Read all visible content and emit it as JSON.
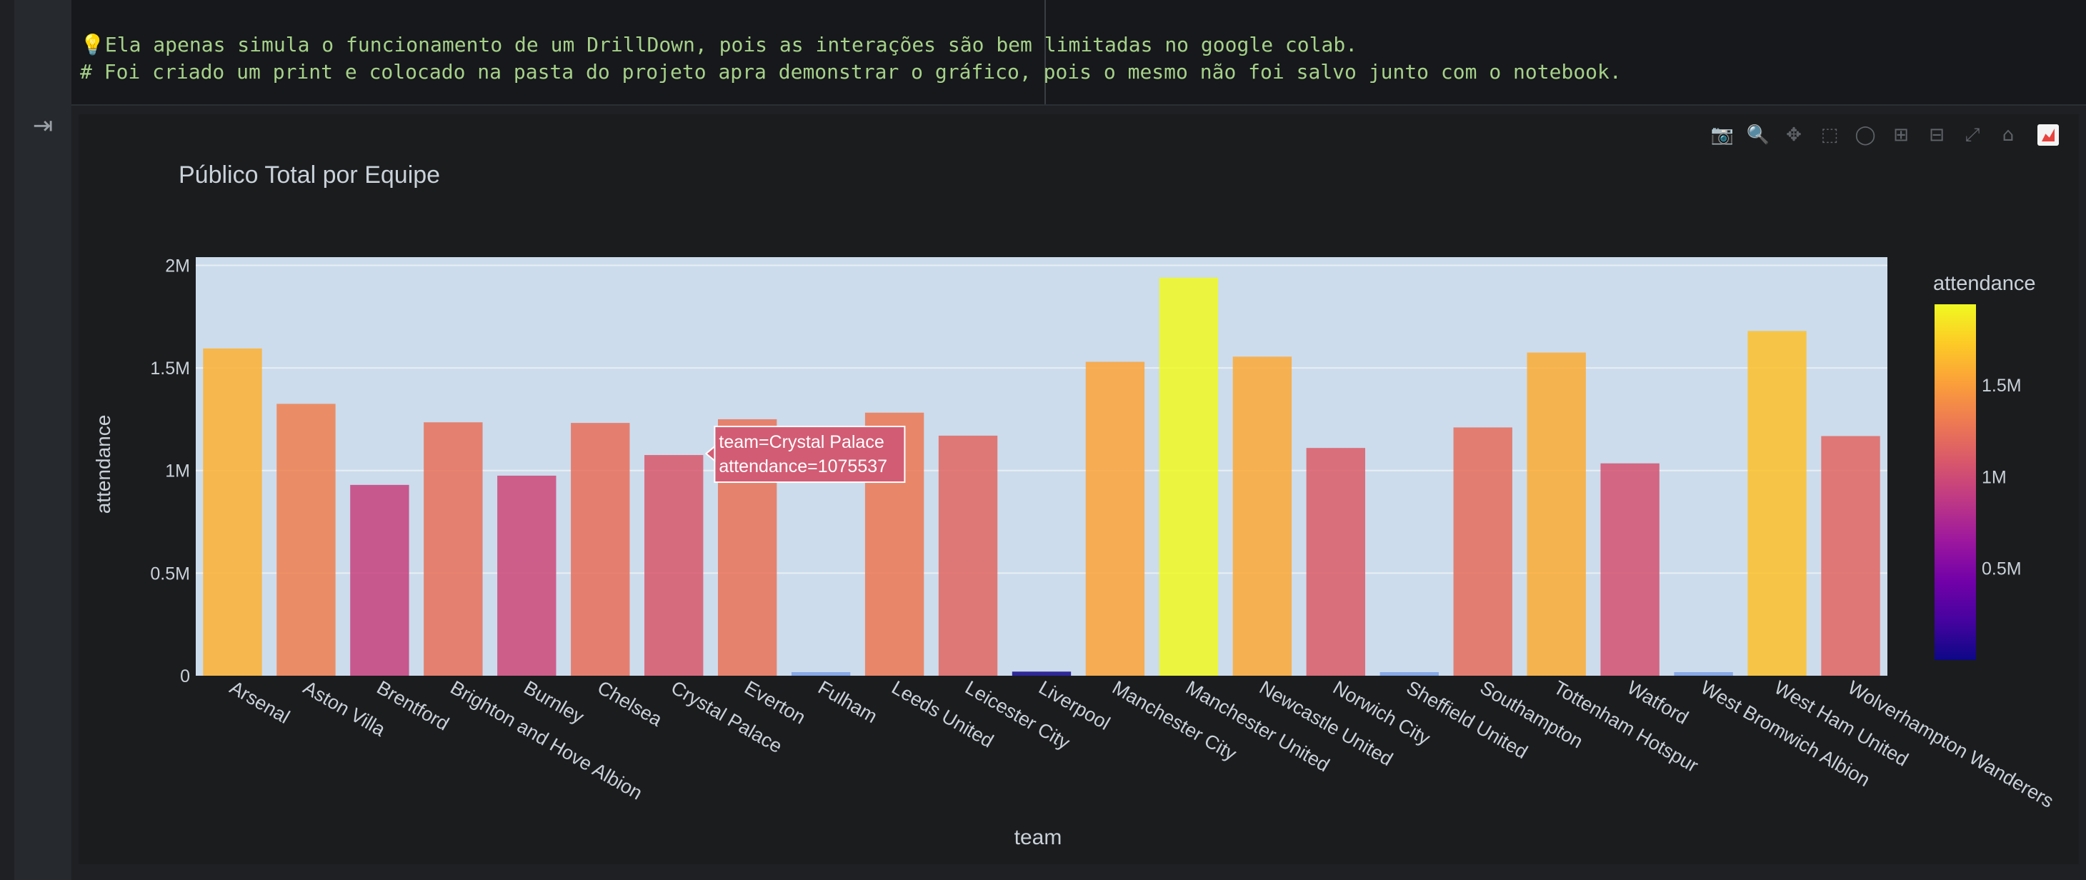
{
  "notebook": {
    "code_lines": [
      "Ela apenas simula o funcionamento de um DrillDown, pois as interações são bem limitadas no google colab.",
      "# Foi criado um print e colocado na pasta do projeto apra demonstrar o gráfico, pois o mesmo não foi salvo junto com o notebook."
    ],
    "bulb_icon": "💡",
    "output_toggle_icon": "output-toggle-icon"
  },
  "modebar": {
    "buttons": [
      "camera-icon",
      "zoom-icon",
      "pan-icon",
      "box-select-icon",
      "lasso-icon",
      "zoom-in-icon",
      "zoom-out-icon",
      "autoscale-icon",
      "reset-axes-icon",
      "plotly-logo"
    ]
  },
  "chart_data": {
    "type": "bar",
    "title": "Público Total por Equipe",
    "xlabel": "team",
    "ylabel": "attendance",
    "categories": [
      "Arsenal",
      "Aston Villa",
      "Brentford",
      "Brighton and Hove Albion",
      "Burnley",
      "Chelsea",
      "Crystal Palace",
      "Everton",
      "Fulham",
      "Leeds United",
      "Leicester City",
      "Liverpool",
      "Manchester City",
      "Manchester United",
      "Newcastle United",
      "Norwich City",
      "Sheffield United",
      "Southampton",
      "Tottenham Hotspur",
      "Watford",
      "West Bromwich Albion",
      "West Ham United",
      "Wolverhampton Wanderers"
    ],
    "values": [
      1595000,
      1325000,
      930000,
      1235000,
      975000,
      1232000,
      1075537,
      1250000,
      12000,
      1282000,
      1170000,
      20000,
      1530000,
      1940000,
      1555000,
      1110000,
      15000,
      1210000,
      1575000,
      1035000,
      12000,
      1680000,
      1168000
    ],
    "ylim": [
      0,
      2040000
    ],
    "yticks": [
      0,
      500000,
      1000000,
      1500000,
      2000000
    ],
    "ytick_labels": [
      "0",
      "0.5M",
      "1M",
      "1.5M",
      "2M"
    ],
    "colorbar": {
      "title": "attendance",
      "range": [
        0,
        1940000
      ],
      "ticks": [
        500000,
        1000000,
        1500000
      ],
      "tick_labels": [
        "0.5M",
        "1M",
        "1.5M"
      ],
      "colorscale": [
        "#0d0887",
        "#46039f",
        "#7201a8",
        "#9c179e",
        "#bd3786",
        "#d8576b",
        "#ed7953",
        "#fb9f3a",
        "#fdca26",
        "#f0f921"
      ]
    },
    "plot_bg": "#ccdcec",
    "tooltip": {
      "index": 6,
      "lines": [
        "team=Crystal Palace",
        "attendance=1075537"
      ]
    }
  }
}
